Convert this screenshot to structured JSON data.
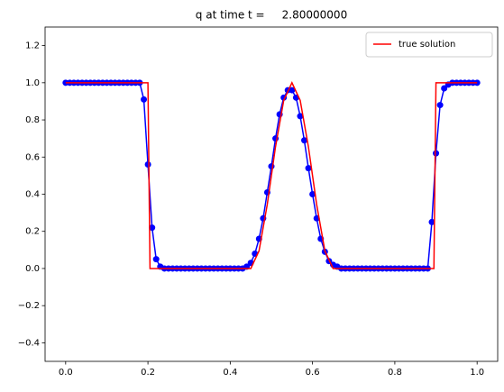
{
  "chart_data": {
    "type": "line",
    "title": "q at time t =     2.80000000",
    "xlim": [
      -0.05,
      1.05
    ],
    "ylim": [
      -0.5,
      1.3
    ],
    "xticks": [
      {
        "value": 0,
        "label": "0.0"
      },
      {
        "value": 0.2,
        "label": "0.2"
      },
      {
        "value": 0.4,
        "label": "0.4"
      },
      {
        "value": 0.6,
        "label": "0.6"
      },
      {
        "value": 0.8,
        "label": "0.8"
      },
      {
        "value": 1,
        "label": "1.0"
      }
    ],
    "yticks": [
      {
        "value": -0.4,
        "label": "−0.4"
      },
      {
        "value": -0.2,
        "label": "−0.2"
      },
      {
        "value": 0,
        "label": "0.0"
      },
      {
        "value": 0.2,
        "label": "0.2"
      },
      {
        "value": 0.4,
        "label": "0.4"
      },
      {
        "value": 0.6,
        "label": "0.6"
      },
      {
        "value": 0.8,
        "label": "0.8"
      },
      {
        "value": 1,
        "label": "1.0"
      },
      {
        "value": 1.2,
        "label": "1.2"
      }
    ],
    "legend": "upper right",
    "series": [
      {
        "color": "#0000ff",
        "marker": "o",
        "x": [
          0,
          0.01,
          0.02,
          0.03,
          0.04,
          0.05,
          0.06,
          0.07,
          0.08,
          0.09,
          0.1,
          0.11,
          0.12,
          0.13,
          0.14,
          0.15,
          0.16,
          0.17,
          0.18,
          0.19,
          0.2,
          0.21,
          0.22,
          0.23,
          0.24,
          0.25,
          0.26,
          0.27,
          0.28,
          0.29,
          0.3,
          0.31,
          0.32,
          0.33,
          0.34,
          0.35,
          0.36,
          0.37,
          0.38,
          0.39,
          0.4,
          0.41,
          0.42,
          0.43,
          0.44,
          0.45,
          0.46,
          0.47,
          0.48,
          0.49,
          0.5,
          0.51,
          0.52,
          0.53,
          0.54,
          0.55,
          0.56,
          0.57,
          0.58,
          0.59,
          0.6,
          0.61,
          0.62,
          0.63,
          0.64,
          0.65,
          0.66,
          0.67,
          0.68,
          0.69,
          0.7,
          0.71,
          0.72,
          0.73,
          0.74,
          0.75,
          0.76,
          0.77,
          0.78,
          0.79,
          0.8,
          0.81,
          0.82,
          0.83,
          0.84,
          0.85,
          0.86,
          0.87,
          0.88,
          0.89,
          0.9,
          0.91,
          0.92,
          0.93,
          0.94,
          0.95,
          0.96,
          0.97,
          0.98,
          0.99,
          1
        ],
        "values": [
          1,
          1,
          1,
          1,
          1,
          1,
          1,
          1,
          1,
          1,
          1,
          1,
          1,
          1,
          1,
          1,
          1,
          1,
          1,
          0.91,
          0.56,
          0.22,
          0.05,
          0.01,
          0,
          0,
          0,
          0,
          0,
          0,
          0,
          0,
          0,
          0,
          0,
          0,
          0,
          0,
          0,
          0,
          0,
          0,
          0,
          0,
          0.01,
          0.03,
          0.08,
          0.16,
          0.27,
          0.41,
          0.55,
          0.7,
          0.83,
          0.92,
          0.96,
          0.96,
          0.92,
          0.82,
          0.69,
          0.54,
          0.4,
          0.27,
          0.16,
          0.09,
          0.04,
          0.02,
          0.01,
          0,
          0,
          0,
          0,
          0,
          0,
          0,
          0,
          0,
          0,
          0,
          0,
          0,
          0,
          0,
          0,
          0,
          0,
          0,
          0,
          0,
          0,
          0.25,
          0.62,
          0.88,
          0.97,
          0.99,
          1,
          1,
          1,
          1,
          1,
          1,
          1
        ]
      },
      {
        "name": "true solution",
        "color": "#ff0000",
        "x": [
          0,
          0.2,
          0.205,
          0.45,
          0.47,
          0.49,
          0.51,
          0.53,
          0.55,
          0.57,
          0.59,
          0.61,
          0.63,
          0.65,
          0.895,
          0.9,
          1
        ],
        "values": [
          1,
          1,
          0,
          0,
          0.095,
          0.345,
          0.655,
          0.905,
          1,
          0.905,
          0.655,
          0.345,
          0.095,
          0,
          0,
          1,
          1
        ]
      }
    ]
  }
}
